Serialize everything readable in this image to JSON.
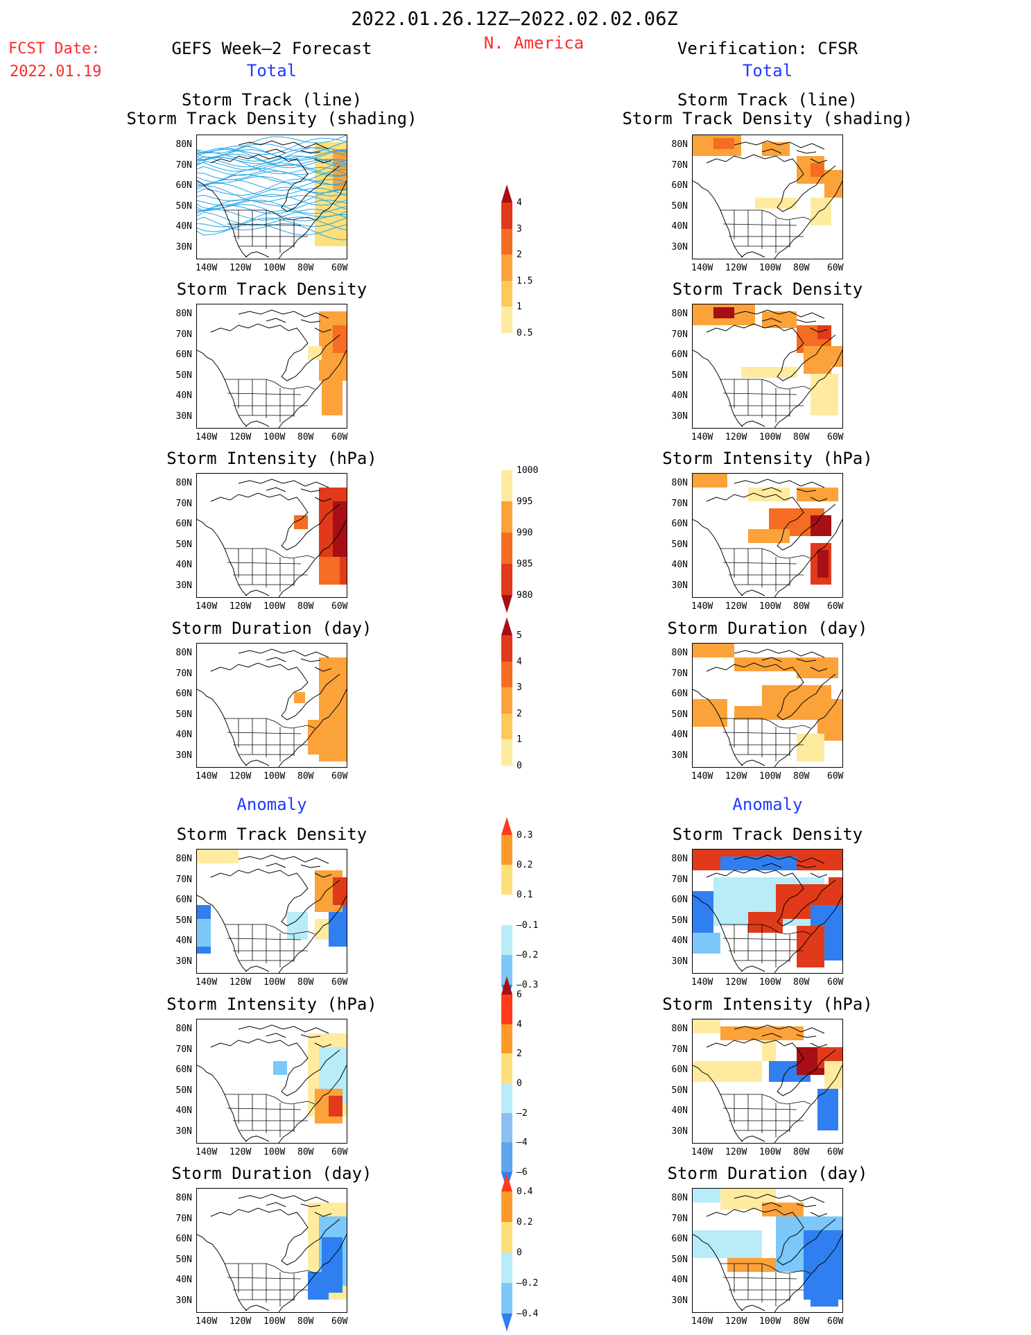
{
  "header": {
    "period": "2022.01.26.12Z–2022.02.02.06Z",
    "region": "N. America",
    "fcst_label": "FCST Date:",
    "fcst_date": "2022.01.19",
    "left_title": "GEFS Week–2 Forecast",
    "right_title": "Verification: CFSR",
    "total_label": "Total",
    "anomaly_label": "Anomaly"
  },
  "axes": {
    "lat_ticks": [
      "80N",
      "70N",
      "60N",
      "50N",
      "40N",
      "30N"
    ],
    "lon_ticks": [
      "140W",
      "120W",
      "100W",
      "80W",
      "60W"
    ]
  },
  "panels": {
    "track": "Storm Track (line)\nStorm Track Density (shading)",
    "density": "Storm Track Density",
    "intensity": "Storm Intensity (hPa)",
    "duration": "Storm Duration (day)"
  },
  "colorbars": {
    "density": {
      "labels": [
        "4",
        "3",
        "2",
        "1.5",
        "1",
        "0.5"
      ],
      "colors": [
        "#a50f15",
        "#e03a1a",
        "#f46d22",
        "#fba23a",
        "#fdc95c",
        "#feeba0",
        "#ffffff"
      ]
    },
    "intensity": {
      "labels": [
        "1000",
        "995",
        "990",
        "985",
        "980"
      ],
      "colors": [
        "#ffffff",
        "#feeba0",
        "#fba23a",
        "#f46d22",
        "#e03a1a",
        "#a50f15"
      ]
    },
    "duration": {
      "labels": [
        "5",
        "4",
        "3",
        "2",
        "1",
        "0"
      ],
      "colors": [
        "#a50f15",
        "#e03a1a",
        "#f46d22",
        "#fba23a",
        "#fdc95c",
        "#feeba0",
        "#ffffff"
      ]
    },
    "anom_density": {
      "labels": [
        "0.3",
        "0.2",
        "0.1",
        "–0.1",
        "–0.2",
        "–0.3"
      ],
      "colors": [
        "#ff3b1a",
        "#fb9a2a",
        "#fde07a",
        "#ffffff",
        "#b8ecf8",
        "#7cc8f8",
        "#2f7ff0"
      ]
    },
    "anom_intensity": {
      "labels": [
        "6",
        "4",
        "2",
        "0",
        "–2",
        "–4",
        "–6"
      ],
      "colors": [
        "#a50f15",
        "#ff3b1a",
        "#fb9a2a",
        "#fde07a",
        "#b8ecf8",
        "#8cc0f0",
        "#5ea4f0",
        "#2f7ff0"
      ]
    },
    "anom_duration": {
      "labels": [
        "0.4",
        "0.2",
        "0",
        "–0.2",
        "–0.4"
      ],
      "colors": [
        "#ff3b1a",
        "#fb9a2a",
        "#fde07a",
        "#b8ecf8",
        "#7cc8f8",
        "#2f7ff0"
      ]
    }
  }
}
